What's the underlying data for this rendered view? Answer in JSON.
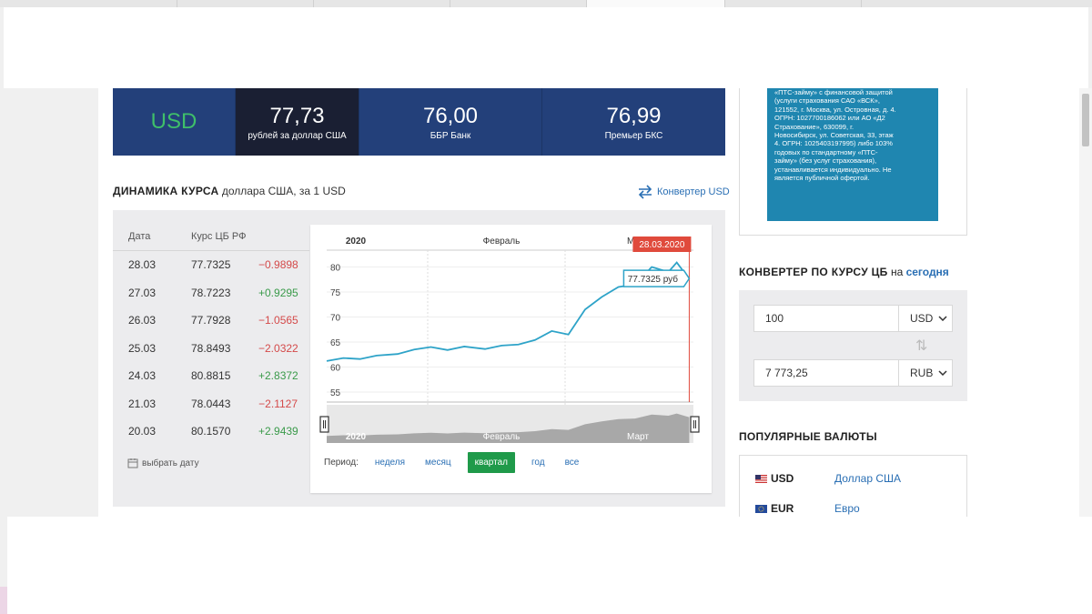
{
  "rates": {
    "currency": "USD",
    "cb": {
      "value": "77,73",
      "label": "рублей за доллар США"
    },
    "banks": [
      {
        "value": "76,00",
        "label": "ББР Банк"
      },
      {
        "value": "76,99",
        "label": "Премьер БКС"
      }
    ]
  },
  "dynamics": {
    "title_bold": "ДИНАМИКА КУРСА",
    "title_rest": " доллара США, за 1 USD",
    "converter_link": "Конвертер USD"
  },
  "table": {
    "headers": [
      "Дата",
      "Курс ЦБ РФ"
    ],
    "rows": [
      {
        "date": "28.03",
        "rate": "77.7325",
        "change": "−0.9898",
        "dir": "neg"
      },
      {
        "date": "27.03",
        "rate": "78.7223",
        "change": "+0.9295",
        "dir": "pos"
      },
      {
        "date": "26.03",
        "rate": "77.7928",
        "change": "−1.0565",
        "dir": "neg"
      },
      {
        "date": "25.03",
        "rate": "78.8493",
        "change": "−2.0322",
        "dir": "neg"
      },
      {
        "date": "24.03",
        "rate": "80.8815",
        "change": "+2.8372",
        "dir": "pos"
      },
      {
        "date": "21.03",
        "rate": "78.0443",
        "change": "−2.1127",
        "dir": "neg"
      },
      {
        "date": "20.03",
        "rate": "80.1570",
        "change": "+2.9439",
        "dir": "pos"
      }
    ],
    "pick_date": "выбрать дату"
  },
  "chart_data": {
    "type": "line",
    "top_labels": [
      "2020",
      "Февраль",
      "Ма"
    ],
    "nav_labels": [
      "2020",
      "Февраль",
      "Март"
    ],
    "y_ticks": [
      55,
      60,
      65,
      70,
      75,
      80
    ],
    "ylim": [
      53,
      83
    ],
    "x": [
      0,
      4,
      8,
      12,
      17,
      21,
      25,
      29,
      33,
      38,
      42,
      46,
      50,
      54,
      58,
      62,
      66,
      70,
      74,
      78,
      82,
      84,
      86,
      87
    ],
    "values": [
      61.2,
      61.8,
      61.6,
      62.3,
      62.6,
      63.5,
      64.0,
      63.4,
      64.1,
      63.6,
      64.3,
      64.5,
      65.4,
      67.2,
      66.5,
      71.5,
      74.0,
      76.0,
      76.5,
      80.0,
      79.0,
      80.9,
      78.7,
      77.7
    ],
    "xlim": [
      0,
      88
    ],
    "tooltip_date": "28.03.2020",
    "tooltip_value": "77.7325 руб",
    "colors": {
      "line": "#2ea3c8",
      "marker": "#e04a3c"
    }
  },
  "period": {
    "label": "Период:",
    "options": [
      {
        "label": "неделя",
        "active": false
      },
      {
        "label": "месяц",
        "active": false
      },
      {
        "label": "квартал",
        "active": true
      },
      {
        "label": "год",
        "active": false
      },
      {
        "label": "все",
        "active": false
      }
    ]
  },
  "ad_lines": [
    "«ПТС-займу» с финансовой защитой",
    "(услуги страхования САО «ВСК»,",
    "121552, г. Москва, ул. Островная, д. 4.",
    "ОГРН: 1027700186062 или АО «Д2",
    "Страхование», 630099, г.",
    "Новосибирск, ул. Советская, 33, этаж",
    "4. ОГРН: 1025403197995) либо 103%",
    "годовых по стандартному «ПТС-",
    "займу» (без услуг страхования),",
    "устанавливается индивидуально. Не",
    "является публичной офертой."
  ],
  "converter": {
    "title_bold": "КОНВЕРТЕР ПО КУРСУ ЦБ",
    "title_on": " на ",
    "title_link": "сегодня",
    "amount": "100",
    "from": "USD",
    "result": "7 773,25",
    "to": "RUB"
  },
  "popular": {
    "title": "ПОПУЛЯРНЫЕ ВАЛЮТЫ",
    "items": [
      {
        "code": "USD",
        "name": "Доллар США",
        "flag": "us-flag-icon"
      },
      {
        "code": "EUR",
        "name": "Евро",
        "flag": "eu-flag-icon"
      }
    ]
  }
}
